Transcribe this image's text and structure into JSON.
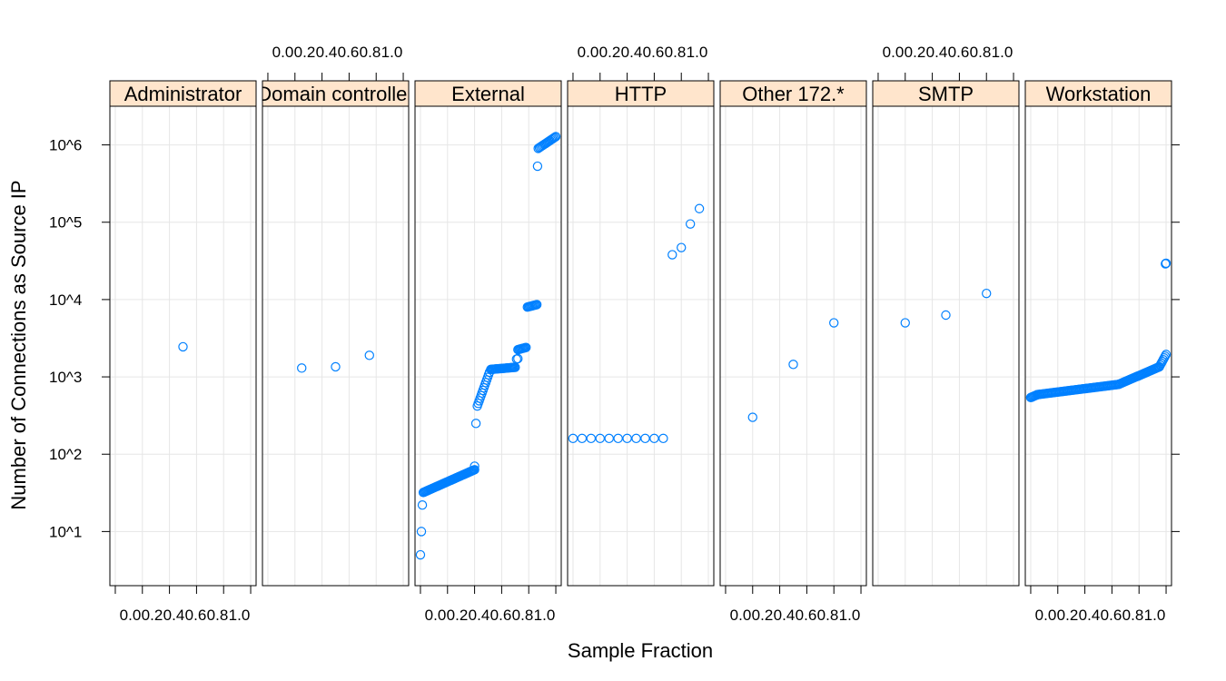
{
  "chart_data": {
    "type": "scatter",
    "xlabel": "Sample Fraction",
    "ylabel": "Number of Connections as Source IP",
    "x_ticks": [
      "0.0",
      "0.2",
      "0.4",
      "0.6",
      "0.8",
      "1.0"
    ],
    "y_scale": "log10",
    "y_ticks": [
      "10^1",
      "10^2",
      "10^3",
      "10^4",
      "10^5",
      "10^6"
    ],
    "xlim": [
      -0.04,
      1.04
    ],
    "ylim_log10": [
      0.3,
      6.5
    ],
    "grid": true,
    "point_color": "#0080ff",
    "strip_color": "#ffe5cc",
    "panels": [
      {
        "name": "Administrator",
        "points": [
          {
            "x": 0.5,
            "y": 2450
          }
        ]
      },
      {
        "name": "Domain controller",
        "points": [
          {
            "x": 0.25,
            "y": 1300
          },
          {
            "x": 0.5,
            "y": 1350
          },
          {
            "x": 0.75,
            "y": 1900
          }
        ]
      },
      {
        "name": "External",
        "segments": [
          {
            "x0": 0.0,
            "x1": 0.0,
            "y0": 5,
            "y1": 5,
            "n": 1
          },
          {
            "x0": 0.007,
            "x1": 0.007,
            "y0": 10,
            "y1": 10,
            "n": 1
          },
          {
            "x0": 0.014,
            "x1": 0.014,
            "y0": 22,
            "y1": 22,
            "n": 1
          },
          {
            "x0": 0.021,
            "x1": 0.4,
            "y0": 32,
            "y1": 63,
            "n": 55
          },
          {
            "x0": 0.4,
            "x1": 0.4,
            "y0": 70,
            "y1": 70,
            "n": 1
          },
          {
            "x0": 0.41,
            "x1": 0.41,
            "y0": 250,
            "y1": 250,
            "n": 1
          },
          {
            "x0": 0.42,
            "x1": 0.51,
            "y0": 420,
            "y1": 1150,
            "n": 14
          },
          {
            "x0": 0.52,
            "x1": 0.7,
            "y0": 1250,
            "y1": 1330,
            "n": 26
          },
          {
            "x0": 0.71,
            "x1": 0.72,
            "y0": 1700,
            "y1": 1720,
            "n": 2
          },
          {
            "x0": 0.72,
            "x1": 0.78,
            "y0": 2250,
            "y1": 2400,
            "n": 9
          },
          {
            "x0": 0.79,
            "x1": 0.86,
            "y0": 8000,
            "y1": 8600,
            "n": 10
          },
          {
            "x0": 0.865,
            "x1": 0.865,
            "y0": 530000,
            "y1": 530000,
            "n": 1
          },
          {
            "x0": 0.87,
            "x1": 1.0,
            "y0": 900000,
            "y1": 1280000,
            "n": 16
          }
        ]
      },
      {
        "name": "HTTP",
        "points": [
          {
            "x": 0.0,
            "y": 160
          },
          {
            "x": 0.0667,
            "y": 160
          },
          {
            "x": 0.1333,
            "y": 160
          },
          {
            "x": 0.2,
            "y": 160
          },
          {
            "x": 0.2667,
            "y": 160
          },
          {
            "x": 0.3333,
            "y": 160
          },
          {
            "x": 0.4,
            "y": 160
          },
          {
            "x": 0.4667,
            "y": 160
          },
          {
            "x": 0.5333,
            "y": 160
          },
          {
            "x": 0.6,
            "y": 160
          },
          {
            "x": 0.6667,
            "y": 160
          },
          {
            "x": 0.7333,
            "y": 38000
          },
          {
            "x": 0.8,
            "y": 47000
          },
          {
            "x": 0.8667,
            "y": 95000
          },
          {
            "x": 0.9333,
            "y": 150000
          }
        ]
      },
      {
        "name": "Other 172.*",
        "points": [
          {
            "x": 0.2,
            "y": 300
          },
          {
            "x": 0.5,
            "y": 1450
          },
          {
            "x": 0.8,
            "y": 5000
          }
        ]
      },
      {
        "name": "SMTP",
        "points": [
          {
            "x": 0.2,
            "y": 5000
          },
          {
            "x": 0.5,
            "y": 6300
          },
          {
            "x": 0.8,
            "y": 12000
          }
        ]
      },
      {
        "name": "Workstation",
        "segments": [
          {
            "x0": 0.0,
            "x1": 0.05,
            "y0": 540,
            "y1": 590,
            "n": 8
          },
          {
            "x0": 0.05,
            "x1": 0.65,
            "y0": 590,
            "y1": 800,
            "n": 70
          },
          {
            "x0": 0.65,
            "x1": 0.95,
            "y0": 800,
            "y1": 1350,
            "n": 40
          },
          {
            "x0": 0.95,
            "x1": 1.0,
            "y0": 1350,
            "y1": 1950,
            "n": 8
          },
          {
            "x0": 0.995,
            "x1": 1.0,
            "y0": 29000,
            "y1": 29500,
            "n": 3
          }
        ]
      }
    ]
  }
}
